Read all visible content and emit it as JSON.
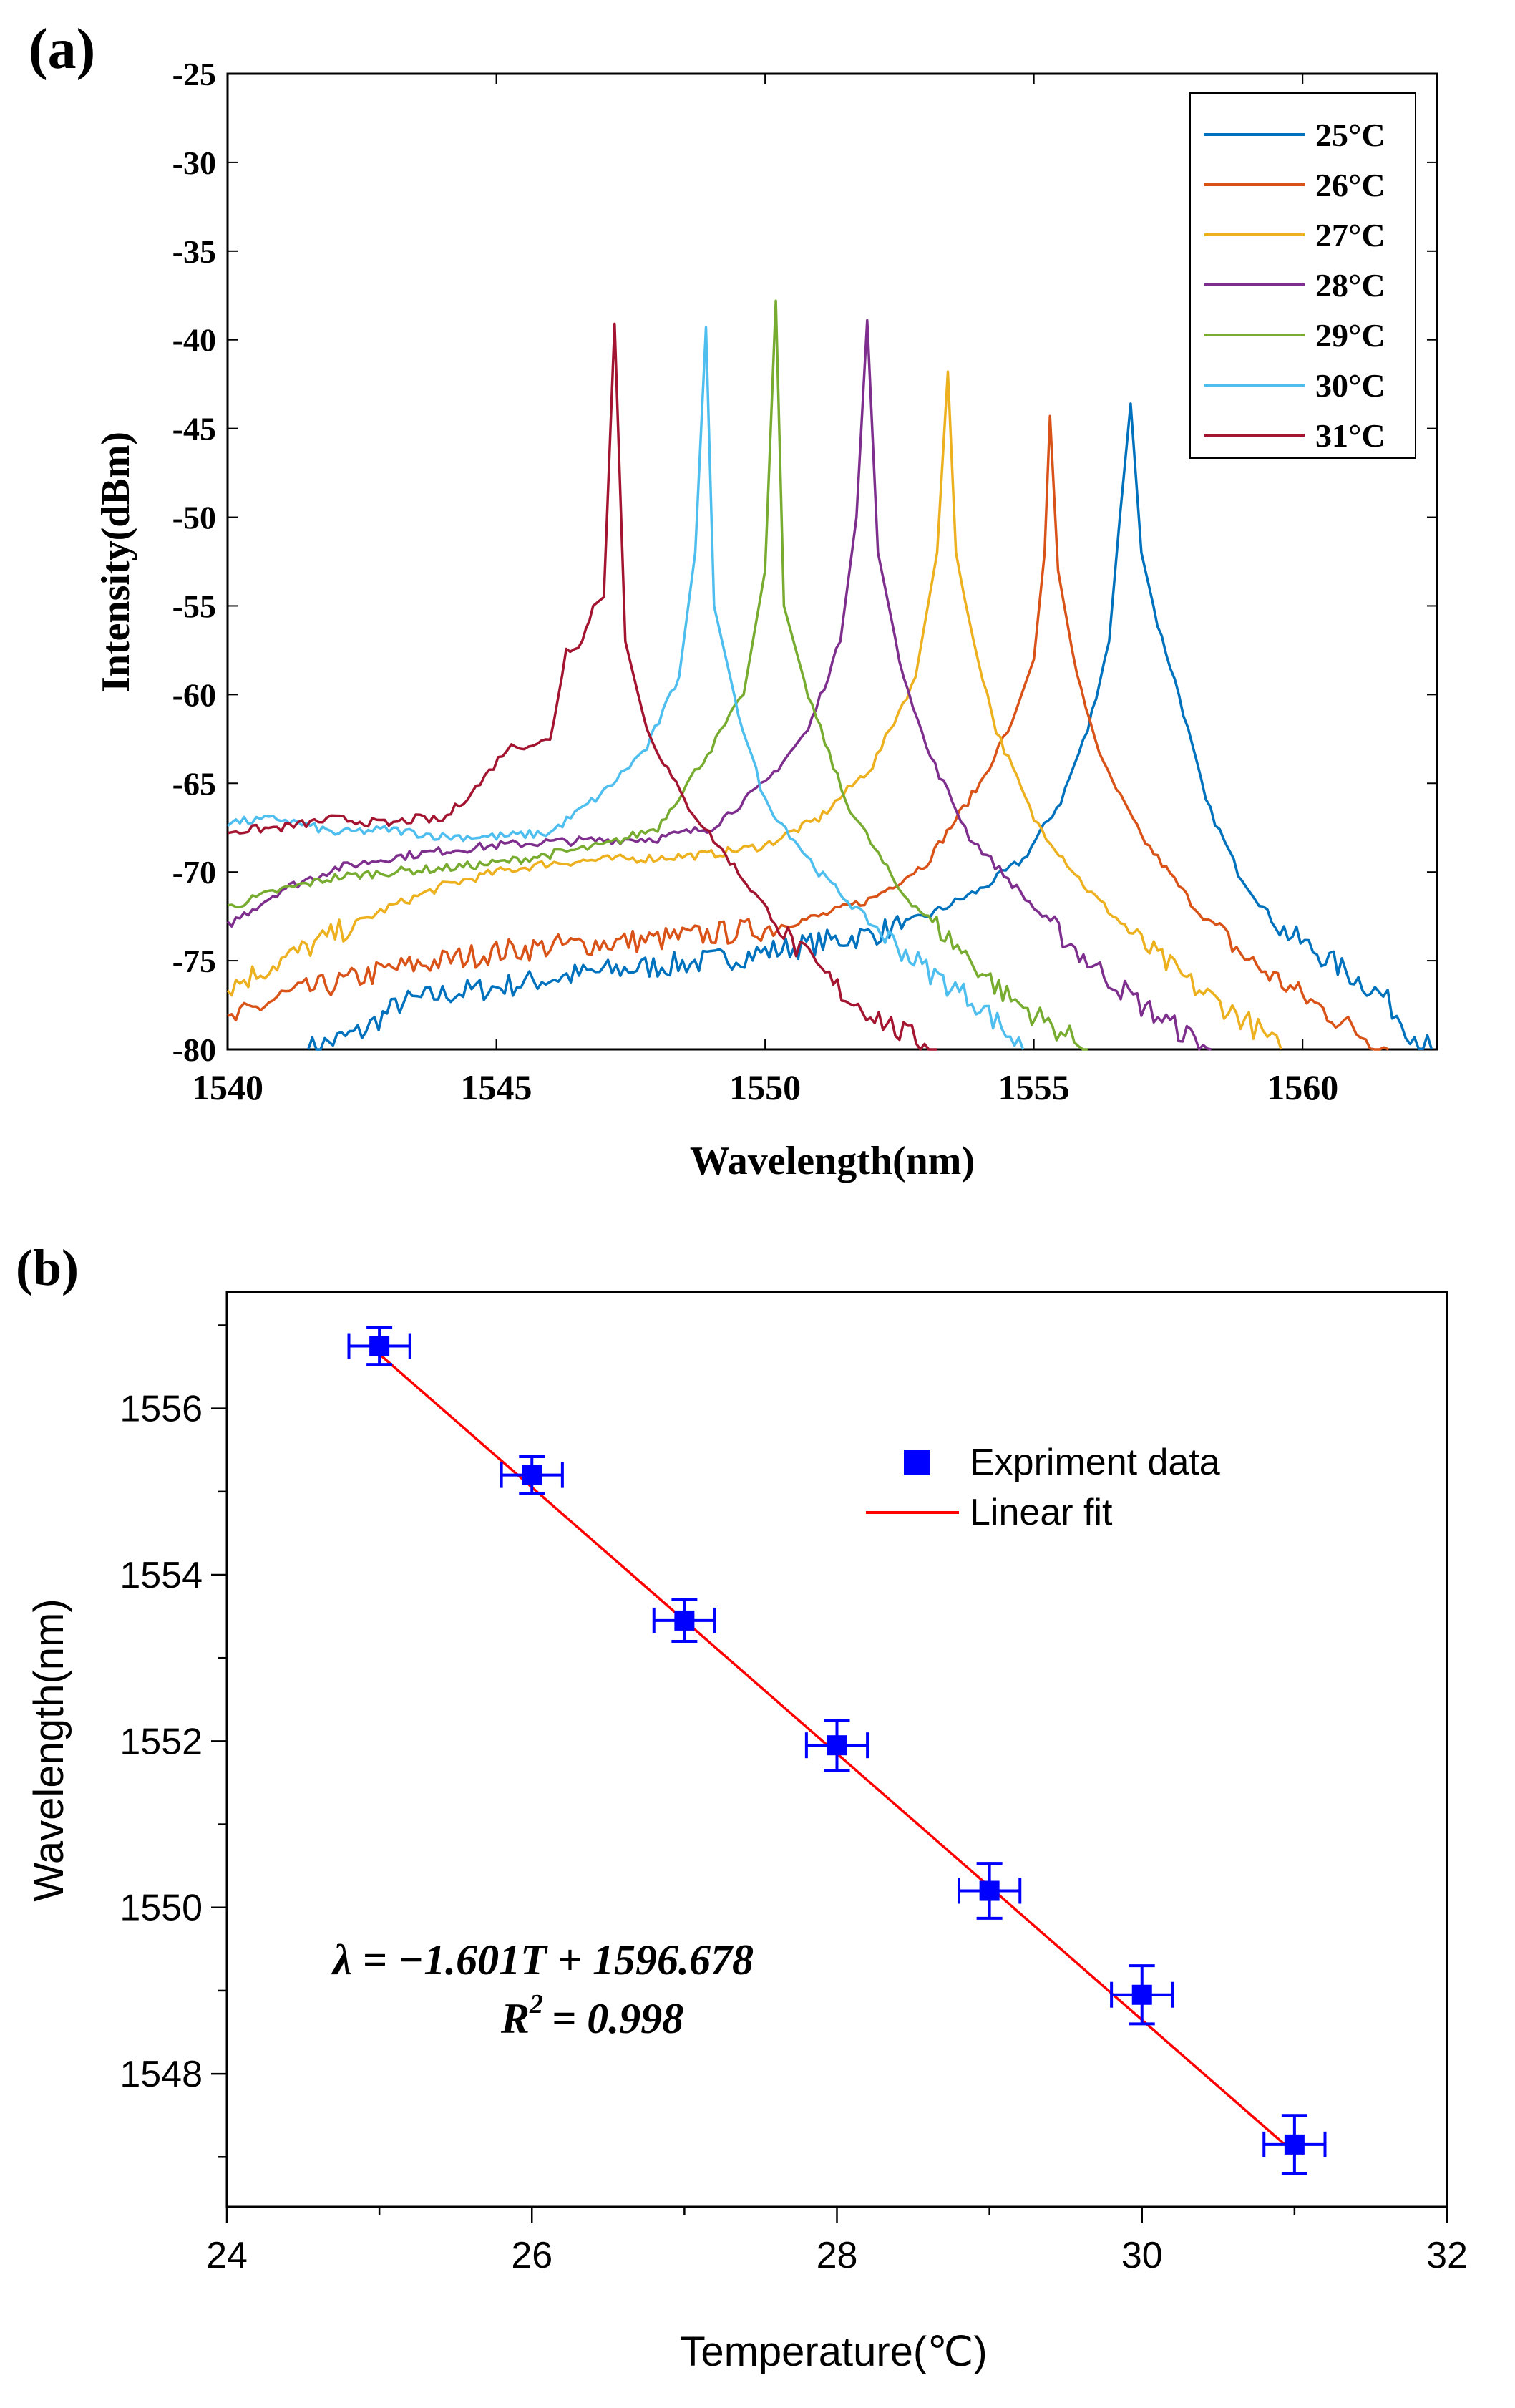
{
  "chart_data": [
    {
      "panel_label": "(a)",
      "type": "line",
      "title": "",
      "xlabel": "Wavelength(nm)",
      "ylabel": "Intensity(dBm)",
      "xlim": [
        1540,
        1562.5
      ],
      "ylim": [
        -80,
        -25
      ],
      "xticks": [
        1540,
        1545,
        1550,
        1555,
        1560
      ],
      "yticks": [
        -80,
        -75,
        -70,
        -65,
        -60,
        -55,
        -50,
        -45,
        -40,
        -35,
        -30,
        -25
      ],
      "legend_position": "top-right",
      "series": [
        {
          "name": "25°C",
          "color": "#0072BD",
          "peak_x": 1556.8,
          "peak_y": -43.6,
          "points": [
            [
              1541.5,
              -80
            ],
            [
              1542.5,
              -79
            ],
            [
              1543.2,
              -77.4
            ],
            [
              1544,
              -76.9
            ],
            [
              1545,
              -76.5
            ],
            [
              1546,
              -76
            ],
            [
              1547,
              -75.6
            ],
            [
              1548,
              -75.3
            ],
            [
              1549,
              -75
            ],
            [
              1550,
              -74.5
            ],
            [
              1551,
              -74
            ],
            [
              1552,
              -73.5
            ],
            [
              1553,
              -72.5
            ],
            [
              1554,
              -71
            ],
            [
              1554.8,
              -69.3
            ],
            [
              1555.5,
              -66
            ],
            [
              1556,
              -62
            ],
            [
              1556.4,
              -57
            ],
            [
              1556.6,
              -50
            ],
            [
              1556.8,
              -43.6
            ],
            [
              1557,
              -52
            ],
            [
              1557.3,
              -56
            ],
            [
              1557.7,
              -60
            ],
            [
              1558.2,
              -66
            ],
            [
              1558.8,
              -70
            ],
            [
              1559.5,
              -73
            ],
            [
              1560.5,
              -75
            ],
            [
              1561.5,
              -77
            ],
            [
              1562,
              -79
            ],
            [
              1562.4,
              -80
            ]
          ]
        },
        {
          "name": "26°C",
          "color": "#D95319",
          "peak_x": 1555.3,
          "peak_y": -44.3,
          "points": [
            [
              1540,
              -78.5
            ],
            [
              1541,
              -77
            ],
            [
              1542,
              -76.3
            ],
            [
              1543,
              -75.5
            ],
            [
              1544,
              -75
            ],
            [
              1545,
              -74.5
            ],
            [
              1546,
              -74.2
            ],
            [
              1547,
              -74
            ],
            [
              1548,
              -73.8
            ],
            [
              1549,
              -73.5
            ],
            [
              1550,
              -73.2
            ],
            [
              1551,
              -72.5
            ],
            [
              1552,
              -71.5
            ],
            [
              1553,
              -69.5
            ],
            [
              1554,
              -65
            ],
            [
              1554.6,
              -61.5
            ],
            [
              1555,
              -58
            ],
            [
              1555.2,
              -52
            ],
            [
              1555.3,
              -44.3
            ],
            [
              1555.45,
              -53
            ],
            [
              1555.8,
              -59
            ],
            [
              1556.3,
              -64
            ],
            [
              1557,
              -68
            ],
            [
              1558,
              -72
            ],
            [
              1559,
              -75
            ],
            [
              1560,
              -77
            ],
            [
              1561,
              -79
            ],
            [
              1561.6,
              -80
            ]
          ]
        },
        {
          "name": "27°C",
          "color": "#EDB120",
          "peak_x": 1553.4,
          "peak_y": -41.8,
          "points": [
            [
              1540,
              -76.5
            ],
            [
              1541,
              -75
            ],
            [
              1542,
              -73.5
            ],
            [
              1543,
              -72
            ],
            [
              1544,
              -70.8
            ],
            [
              1545,
              -70
            ],
            [
              1546,
              -69.5
            ],
            [
              1547,
              -69.3
            ],
            [
              1548,
              -69.2
            ],
            [
              1549,
              -69
            ],
            [
              1550,
              -68.5
            ],
            [
              1551,
              -67
            ],
            [
              1552,
              -64
            ],
            [
              1552.8,
              -59
            ],
            [
              1553.2,
              -52
            ],
            [
              1553.4,
              -41.8
            ],
            [
              1553.55,
              -52
            ],
            [
              1553.8,
              -56
            ],
            [
              1554.3,
              -62
            ],
            [
              1555,
              -67
            ],
            [
              1556,
              -71
            ],
            [
              1557,
              -74
            ],
            [
              1558,
              -76.5
            ],
            [
              1559,
              -78.5
            ],
            [
              1559.6,
              -80
            ]
          ]
        },
        {
          "name": "28°C",
          "color": "#7E2F8E",
          "peak_x": 1551.9,
          "peak_y": -38.9,
          "points": [
            [
              1540,
              -73
            ],
            [
              1541,
              -71
            ],
            [
              1542,
              -69.8
            ],
            [
              1543,
              -69.2
            ],
            [
              1544,
              -68.8
            ],
            [
              1545,
              -68.5
            ],
            [
              1546,
              -68.3
            ],
            [
              1547,
              -68.2
            ],
            [
              1548,
              -68.1
            ],
            [
              1549,
              -67.5
            ],
            [
              1550,
              -65
            ],
            [
              1550.8,
              -62
            ],
            [
              1551.4,
              -57
            ],
            [
              1551.7,
              -50
            ],
            [
              1551.9,
              -38.9
            ],
            [
              1552.1,
              -52
            ],
            [
              1552.5,
              -58
            ],
            [
              1553,
              -63
            ],
            [
              1553.8,
              -68
            ],
            [
              1555,
              -72
            ],
            [
              1556,
              -75
            ],
            [
              1557,
              -77.5
            ],
            [
              1558,
              -79.5
            ],
            [
              1558.3,
              -80
            ]
          ]
        },
        {
          "name": "29°C",
          "color": "#77AC30",
          "peak_x": 1550.2,
          "peak_y": -37.8,
          "points": [
            [
              1540,
              -72
            ],
            [
              1541,
              -71
            ],
            [
              1542,
              -70.3
            ],
            [
              1543,
              -70
            ],
            [
              1544,
              -69.8
            ],
            [
              1545,
              -69.5
            ],
            [
              1546,
              -69
            ],
            [
              1547,
              -68.5
            ],
            [
              1548,
              -67.5
            ],
            [
              1549,
              -63
            ],
            [
              1549.6,
              -60
            ],
            [
              1550,
              -53
            ],
            [
              1550.2,
              -37.8
            ],
            [
              1550.35,
              -55
            ],
            [
              1550.8,
              -60
            ],
            [
              1551.5,
              -66
            ],
            [
              1552.5,
              -71
            ],
            [
              1553.5,
              -74
            ],
            [
              1554.5,
              -77
            ],
            [
              1555.5,
              -79
            ],
            [
              1556,
              -80
            ]
          ]
        },
        {
          "name": "30°C",
          "color": "#4DBEEE",
          "peak_x": 1548.9,
          "peak_y": -39.3,
          "points": [
            [
              1540,
              -67.2
            ],
            [
              1541,
              -67
            ],
            [
              1542,
              -67.8
            ],
            [
              1543,
              -67.6
            ],
            [
              1544,
              -68
            ],
            [
              1545,
              -68
            ],
            [
              1546,
              -67.8
            ],
            [
              1547,
              -65.5
            ],
            [
              1547.8,
              -63
            ],
            [
              1548.4,
              -59
            ],
            [
              1548.7,
              -52
            ],
            [
              1548.9,
              -39.3
            ],
            [
              1549.05,
              -55
            ],
            [
              1549.5,
              -61
            ],
            [
              1550,
              -66
            ],
            [
              1551,
              -70
            ],
            [
              1552,
              -73
            ],
            [
              1553,
              -75.5
            ],
            [
              1554,
              -77.5
            ],
            [
              1554.8,
              -80
            ]
          ]
        },
        {
          "name": "31°C",
          "color": "#A2142F",
          "peak_x": 1547.2,
          "peak_y": -39.1,
          "points": [
            [
              1540,
              -67.7
            ],
            [
              1541,
              -67.5
            ],
            [
              1542,
              -67
            ],
            [
              1543,
              -67.3
            ],
            [
              1543.5,
              -67
            ],
            [
              1544,
              -67.1
            ],
            [
              1544.7,
              -65
            ],
            [
              1545.2,
              -63
            ],
            [
              1546,
              -62.6
            ],
            [
              1546.3,
              -57.5
            ],
            [
              1546.6,
              -57
            ],
            [
              1546.8,
              -55
            ],
            [
              1547,
              -54.5
            ],
            [
              1547.2,
              -39.1
            ],
            [
              1547.4,
              -57
            ],
            [
              1547.8,
              -62
            ],
            [
              1548.5,
              -66
            ],
            [
              1549.5,
              -70
            ],
            [
              1550.5,
              -74
            ],
            [
              1551.5,
              -77
            ],
            [
              1552.5,
              -79
            ],
            [
              1553.2,
              -80
            ]
          ]
        }
      ]
    },
    {
      "panel_label": "(b)",
      "type": "scatter",
      "title": "",
      "xlabel": "Temperature(℃)",
      "ylabel": "Wavelength(nm)",
      "xlim": [
        24,
        32
      ],
      "ylim": [
        1546.4,
        1557.4
      ],
      "xticks": [
        24,
        26,
        28,
        30,
        32
      ],
      "yticks": [
        1548,
        1550,
        1552,
        1554,
        1556
      ],
      "legend_position": "top-right",
      "legend": {
        "marker_label": "Expriment data",
        "line_label": "Linear fit"
      },
      "series": [
        {
          "name": "Expriment data",
          "color": "#0000FF",
          "x": [
            25,
            26,
            27,
            28,
            29,
            30,
            31
          ],
          "y": [
            1556.75,
            1555.2,
            1553.45,
            1551.95,
            1550.2,
            1548.95,
            1547.15
          ],
          "x_error": [
            0.2,
            0.2,
            0.2,
            0.2,
            0.2,
            0.2,
            0.2
          ],
          "y_error": [
            0.22,
            0.22,
            0.25,
            0.3,
            0.33,
            0.35,
            0.35
          ]
        },
        {
          "name": "Linear fit",
          "color": "#FF0000",
          "slope": -1.601,
          "intercept": 1596.678,
          "x_range": [
            25,
            31
          ]
        }
      ],
      "annotations": {
        "equation": "λ = −1.601T + 1596.678",
        "r2_label": "R",
        "r2_sup": "2",
        "r2_value": "= 0.998"
      }
    }
  ]
}
